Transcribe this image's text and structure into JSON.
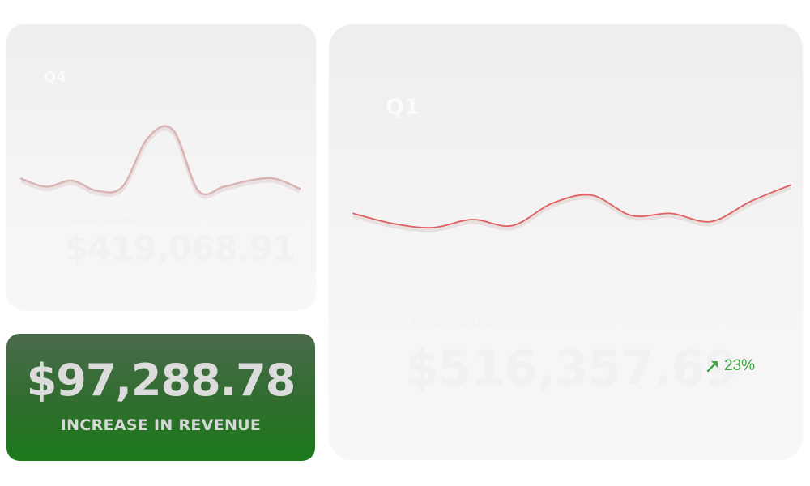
{
  "cards": {
    "q4": {
      "label": "Q4",
      "caption": "Total Sales",
      "value": "$419,068.91",
      "line_color": "#d9b3b3"
    },
    "q1": {
      "label": "Q1",
      "caption": "Total Sales",
      "value": "$516,357.69",
      "line_color": "#e06060",
      "trend": {
        "value": "23%",
        "direction": "up",
        "icon": "trend-up-arrow-icon",
        "color": "#3aa541"
      }
    },
    "revenue": {
      "amount": "$97,288.78",
      "caption": "INCREASE IN REVENUE",
      "background_top": "#4a6a4c",
      "background_bottom": "#1b7a1b"
    }
  },
  "chart_data": [
    {
      "type": "line",
      "title": "",
      "series": [
        {
          "values": [
            3.6,
            3.2,
            3.5,
            3.0,
            3.2,
            5.6,
            6.0,
            3.0,
            3.2,
            3.5,
            3.6,
            3.1
          ]
        }
      ]
    },
    {
      "type": "line",
      "title": "",
      "series": [
        {
          "values": [
            4.6,
            4.1,
            3.9,
            4.3,
            4.0,
            5.1,
            5.5,
            4.5,
            4.6,
            4.2,
            5.2,
            6.0
          ]
        }
      ]
    }
  ]
}
